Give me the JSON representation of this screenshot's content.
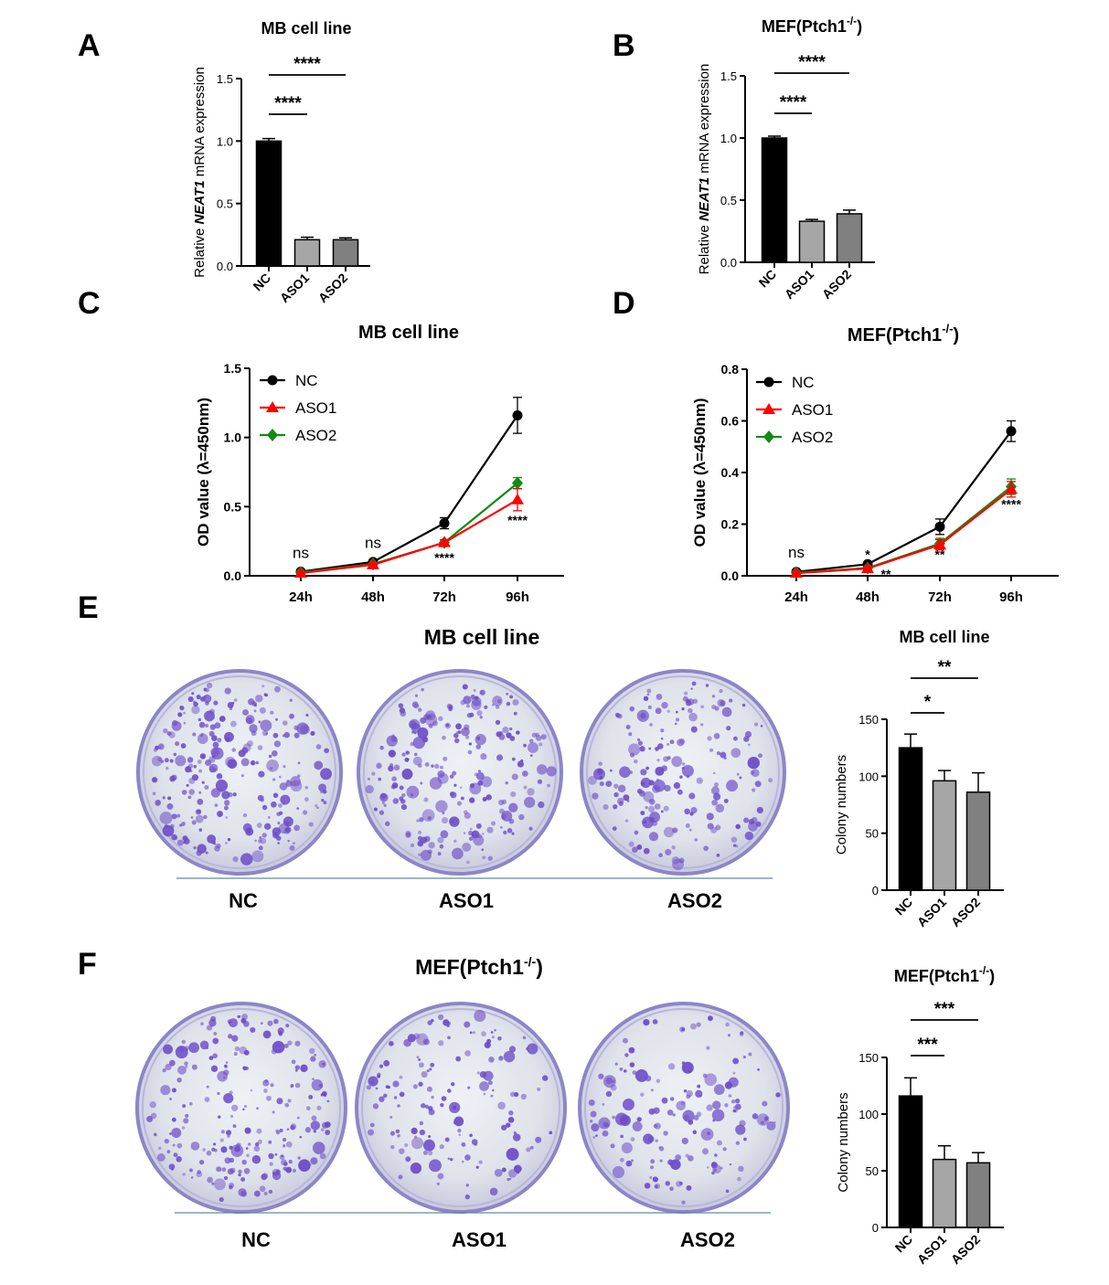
{
  "colors": {
    "nc": "#000000",
    "aso1": "#ff0000",
    "aso2": "#138a13",
    "bar_nc": "#000000",
    "bar_aso1": "#a6a6a6",
    "bar_aso2": "#808080",
    "stain": "#6a4cc8"
  },
  "panels": {
    "A": {
      "letter": "A"
    },
    "B": {
      "letter": "B"
    },
    "C": {
      "letter": "C"
    },
    "D": {
      "letter": "D"
    },
    "E": {
      "letter": "E",
      "title": "MB cell line",
      "plates": [
        "NC",
        "ASO1",
        "ASO2"
      ]
    },
    "F": {
      "letter": "F",
      "title_main": "MEF(Ptch1",
      "title_sup": "-/-",
      "title_end": ")",
      "plates": [
        "NC",
        "ASO1",
        "ASO2"
      ]
    }
  },
  "chart_data": [
    {
      "id": "A",
      "type": "bar",
      "title": "MB cell line",
      "ylabel_pre": "Relative ",
      "ylabel_it": "NEAT1",
      "ylabel_post": " mRNA expression",
      "categories": [
        "NC",
        "ASO1",
        "ASO2"
      ],
      "values": [
        1.0,
        0.21,
        0.21
      ],
      "errors": [
        0.02,
        0.02,
        0.015
      ],
      "ylim": [
        0,
        1.5
      ],
      "yticks": [
        0.0,
        0.5,
        1.0,
        1.5
      ],
      "tick_labels": [
        "0.0",
        "0.5",
        "1.0",
        "1.5"
      ],
      "sig": [
        {
          "from": 0,
          "to": 1,
          "label": "****"
        },
        {
          "from": 0,
          "to": 2,
          "label": "****"
        }
      ]
    },
    {
      "id": "B",
      "type": "bar",
      "title_main": "MEF(Ptch1",
      "title_sup": "-/-",
      "title_end": ")",
      "ylabel_pre": "Relative ",
      "ylabel_it": "NEAT1",
      "ylabel_post": " mRNA expression",
      "categories": [
        "NC",
        "ASO1",
        "ASO2"
      ],
      "values": [
        1.0,
        0.33,
        0.39
      ],
      "errors": [
        0.015,
        0.015,
        0.03
      ],
      "ylim": [
        0,
        1.5
      ],
      "yticks": [
        0.0,
        0.5,
        1.0,
        1.5
      ],
      "tick_labels": [
        "0.0",
        "0.5",
        "1.0",
        "1.5"
      ],
      "sig": [
        {
          "from": 0,
          "to": 1,
          "label": "****"
        },
        {
          "from": 0,
          "to": 2,
          "label": "****"
        }
      ]
    },
    {
      "id": "C",
      "type": "line",
      "title": "MB cell line",
      "ylabel": "OD value (λ=450nm)",
      "x": [
        "24h",
        "48h",
        "72h",
        "96h"
      ],
      "ylim": [
        0,
        1.5
      ],
      "yticks": [
        0.0,
        0.5,
        1.0,
        1.5
      ],
      "tick_labels": [
        "0.0",
        "0.5",
        "1.0",
        "1.5"
      ],
      "legend_position": "top-left",
      "series": [
        {
          "name": "NC",
          "key": "nc",
          "marker": "circle",
          "values": [
            0.03,
            0.1,
            0.38,
            1.16
          ],
          "errors": [
            0.005,
            0.01,
            0.04,
            0.13
          ]
        },
        {
          "name": "ASO2",
          "key": "aso2",
          "marker": "diamond",
          "values": [
            0.025,
            0.085,
            0.24,
            0.67
          ],
          "errors": [
            0.004,
            0.008,
            0.02,
            0.04
          ]
        },
        {
          "name": "ASO1",
          "key": "aso1",
          "marker": "triangle",
          "values": [
            0.02,
            0.08,
            0.24,
            0.55
          ],
          "errors": [
            0.004,
            0.008,
            0.02,
            0.08
          ]
        }
      ],
      "annotations": [
        {
          "x_index": 0,
          "y": 0.13,
          "label": "ns",
          "size": "big"
        },
        {
          "x_index": 1,
          "y": 0.2,
          "label": "ns",
          "size": "big"
        },
        {
          "x_index": 2,
          "y": 0.1,
          "label": "****",
          "size": "small"
        },
        {
          "x_index": 3,
          "y": 0.37,
          "label": "****",
          "size": "small"
        }
      ]
    },
    {
      "id": "D",
      "type": "line",
      "title_main": "MEF(Ptch1",
      "title_sup": "-/-",
      "title_end": ")",
      "ylabel": "OD value (λ=450nm)",
      "x": [
        "24h",
        "48h",
        "72h",
        "96h"
      ],
      "ylim": [
        0,
        0.8
      ],
      "yticks": [
        0.0,
        0.2,
        0.4,
        0.6,
        0.8
      ],
      "tick_labels": [
        "0.0",
        "0.2",
        "0.4",
        "0.6",
        "0.8"
      ],
      "legend_position": "top-left",
      "series": [
        {
          "name": "NC",
          "key": "nc",
          "marker": "circle",
          "values": [
            0.015,
            0.045,
            0.19,
            0.56
          ],
          "errors": [
            0.003,
            0.006,
            0.03,
            0.04
          ]
        },
        {
          "name": "ASO2",
          "key": "aso2",
          "marker": "diamond",
          "values": [
            0.012,
            0.03,
            0.125,
            0.345
          ],
          "errors": [
            0.003,
            0.005,
            0.02,
            0.03
          ]
        },
        {
          "name": "ASO1",
          "key": "aso1",
          "marker": "triangle",
          "values": [
            0.01,
            0.028,
            0.12,
            0.335
          ],
          "errors": [
            0.003,
            0.005,
            0.02,
            0.03
          ]
        }
      ],
      "annotations": [
        {
          "x_index": 0,
          "y": 0.07,
          "label": "ns",
          "size": "big"
        },
        {
          "x_index": 1,
          "y": 0.065,
          "label": "*",
          "size": "small"
        },
        {
          "x_index": 1,
          "y": -0.01,
          "label": "**",
          "size": "small",
          "dx": 20
        },
        {
          "x_index": 2,
          "y": 0.065,
          "label": "**",
          "size": "small"
        },
        {
          "x_index": 3,
          "y": 0.26,
          "label": "****",
          "size": "small"
        }
      ]
    },
    {
      "id": "E",
      "type": "bar",
      "title": "MB cell line",
      "ylabel": "Colony numbers",
      "categories": [
        "NC",
        "ASO1",
        "ASO2"
      ],
      "values": [
        125,
        96,
        86
      ],
      "errors": [
        12,
        9,
        17
      ],
      "ylim": [
        0,
        150
      ],
      "yticks": [
        0,
        50,
        100,
        150
      ],
      "tick_labels": [
        "0",
        "50",
        "100",
        "150"
      ],
      "sig": [
        {
          "from": 0,
          "to": 1,
          "label": "*"
        },
        {
          "from": 0,
          "to": 2,
          "label": "**"
        }
      ]
    },
    {
      "id": "F",
      "type": "bar",
      "title_main": "MEF(Ptch1",
      "title_sup": "-/-",
      "title_end": ")",
      "ylabel": "Colony numbers",
      "categories": [
        "NC",
        "ASO1",
        "ASO2"
      ],
      "values": [
        116,
        60,
        57
      ],
      "errors": [
        16,
        12,
        9
      ],
      "ylim": [
        0,
        150
      ],
      "yticks": [
        0,
        50,
        100,
        150
      ],
      "tick_labels": [
        "0",
        "50",
        "100",
        "150"
      ],
      "sig": [
        {
          "from": 0,
          "to": 1,
          "label": "***"
        },
        {
          "from": 0,
          "to": 2,
          "label": "***"
        }
      ]
    }
  ]
}
